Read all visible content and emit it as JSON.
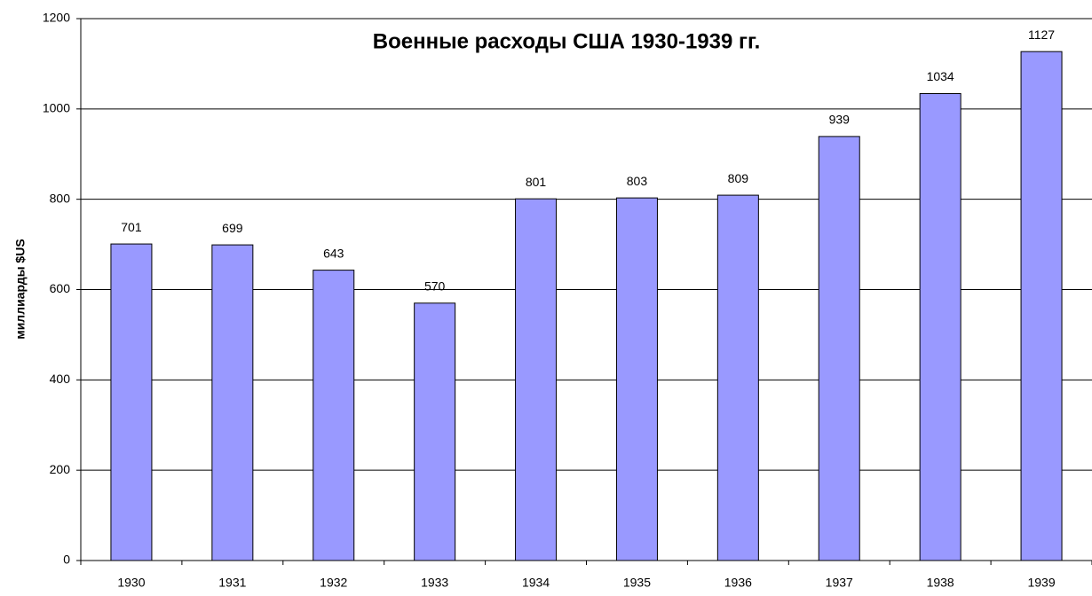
{
  "chart_data": {
    "type": "bar",
    "title": "Военные расходы США 1930-1939 гг.",
    "y_label": "миллиарды $US",
    "categories": [
      "1930",
      "1931",
      "1932",
      "1933",
      "1934",
      "1935",
      "1936",
      "1937",
      "1938",
      "1939"
    ],
    "values": [
      701,
      699,
      643,
      570,
      801,
      803,
      809,
      939,
      1034,
      1127
    ],
    "color": "#9999ff",
    "ylim": [
      0,
      1200
    ],
    "yticks": [
      0,
      200,
      400,
      600,
      800,
      1000,
      1200
    ],
    "grid": true
  }
}
